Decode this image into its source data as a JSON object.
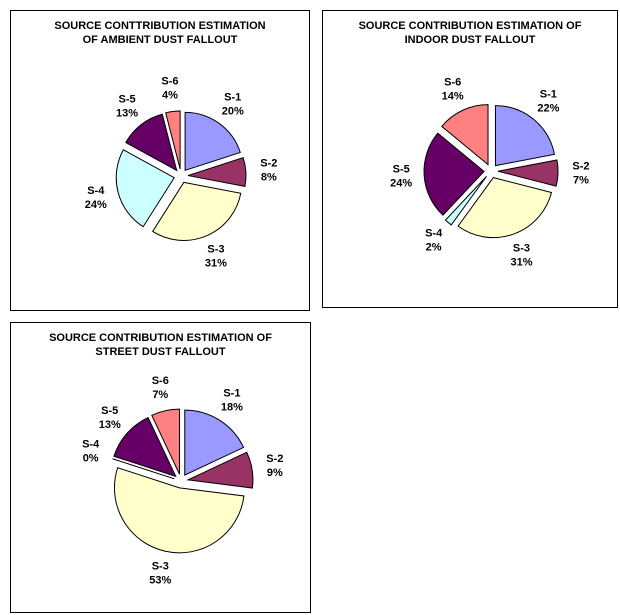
{
  "chart_data": [
    {
      "type": "pie",
      "title": "SOURCE CONTTRIBUTION ESTIMATION OF AMBIENT DUST FALLOUT",
      "categories": [
        "S-1",
        "S-2",
        "S-3",
        "S-4",
        "S-5",
        "S-6"
      ],
      "values": [
        20,
        8,
        31,
        24,
        13,
        4
      ],
      "value_labels": [
        "20%",
        "8%",
        "31%",
        "24%",
        "13%",
        "4%"
      ],
      "colors": [
        "#9999ff",
        "#993366",
        "#ffffcc",
        "#ccffff",
        "#660066",
        "#ff8080"
      ]
    },
    {
      "type": "pie",
      "title": "SOURCE CONTRIBUTION ESTIMATION OF INDOOR DUST FALLOUT",
      "categories": [
        "S-1",
        "S-2",
        "S-3",
        "S-4",
        "S-5",
        "S-6"
      ],
      "values": [
        22,
        7,
        31,
        2,
        24,
        14
      ],
      "value_labels": [
        "22%",
        "7%",
        "31%",
        "2%",
        "24%",
        "14%"
      ],
      "colors": [
        "#9999ff",
        "#993366",
        "#ffffcc",
        "#ccffff",
        "#660066",
        "#ff8080"
      ]
    },
    {
      "type": "pie",
      "title": "SOURCE CONTRIBUTION ESTIMATION OF STREET DUST FALLOUT",
      "categories": [
        "S-1",
        "S-2",
        "S-3",
        "S-4",
        "S-5",
        "S-6"
      ],
      "values": [
        18,
        9,
        53,
        0,
        13,
        7
      ],
      "value_labels": [
        "18%",
        "9%",
        "53%",
        "0%",
        "13%",
        "7%"
      ],
      "colors": [
        "#9999ff",
        "#993366",
        "#ffffcc",
        "#ccffff",
        "#660066",
        "#ff8080"
      ]
    }
  ]
}
